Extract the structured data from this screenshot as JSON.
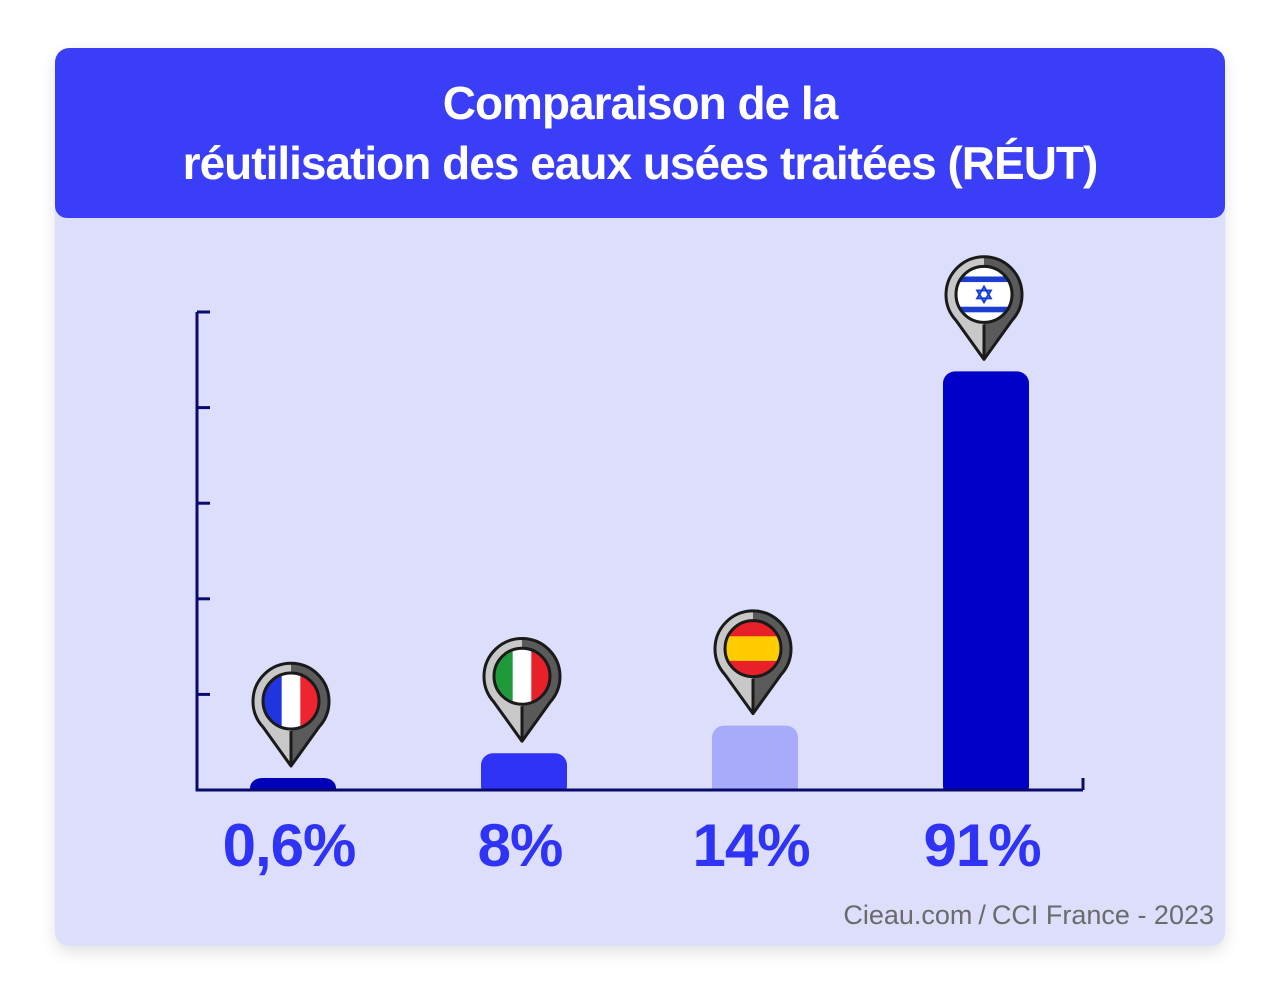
{
  "title": {
    "line1": "Comparaison de la",
    "line2": "réutilisation des eaux usées traitées (RÉUT)"
  },
  "source": {
    "site": "Cieau.com",
    "separator": "/",
    "org": "CCI France - 2023"
  },
  "colors": {
    "header_bg": "#3a3ff7",
    "card_bg": "#dcdefb",
    "axis": "#0a0a6e",
    "label": "#2e33f5"
  },
  "chart_data": {
    "type": "bar",
    "title": "Comparaison de la réutilisation des eaux usées traitées (RÉUT)",
    "categories": [
      "France",
      "Italie",
      "Espagne",
      "Israël"
    ],
    "values": [
      0.6,
      8,
      14,
      91
    ],
    "value_labels": [
      "0,6%",
      "8%",
      "14%",
      "91%"
    ],
    "bar_colors": [
      "#0000b8",
      "#2e33f5",
      "#a7abf9",
      "#0000c8"
    ],
    "flag_icons": [
      "france-flag-icon",
      "italy-flag-icon",
      "spain-flag-icon",
      "israel-flag-icon"
    ],
    "xlabel": "",
    "ylabel": "",
    "ylim": [
      0,
      100
    ],
    "yticks": [
      0,
      20,
      40,
      60,
      80,
      100
    ],
    "grid": false,
    "legend": "none"
  }
}
